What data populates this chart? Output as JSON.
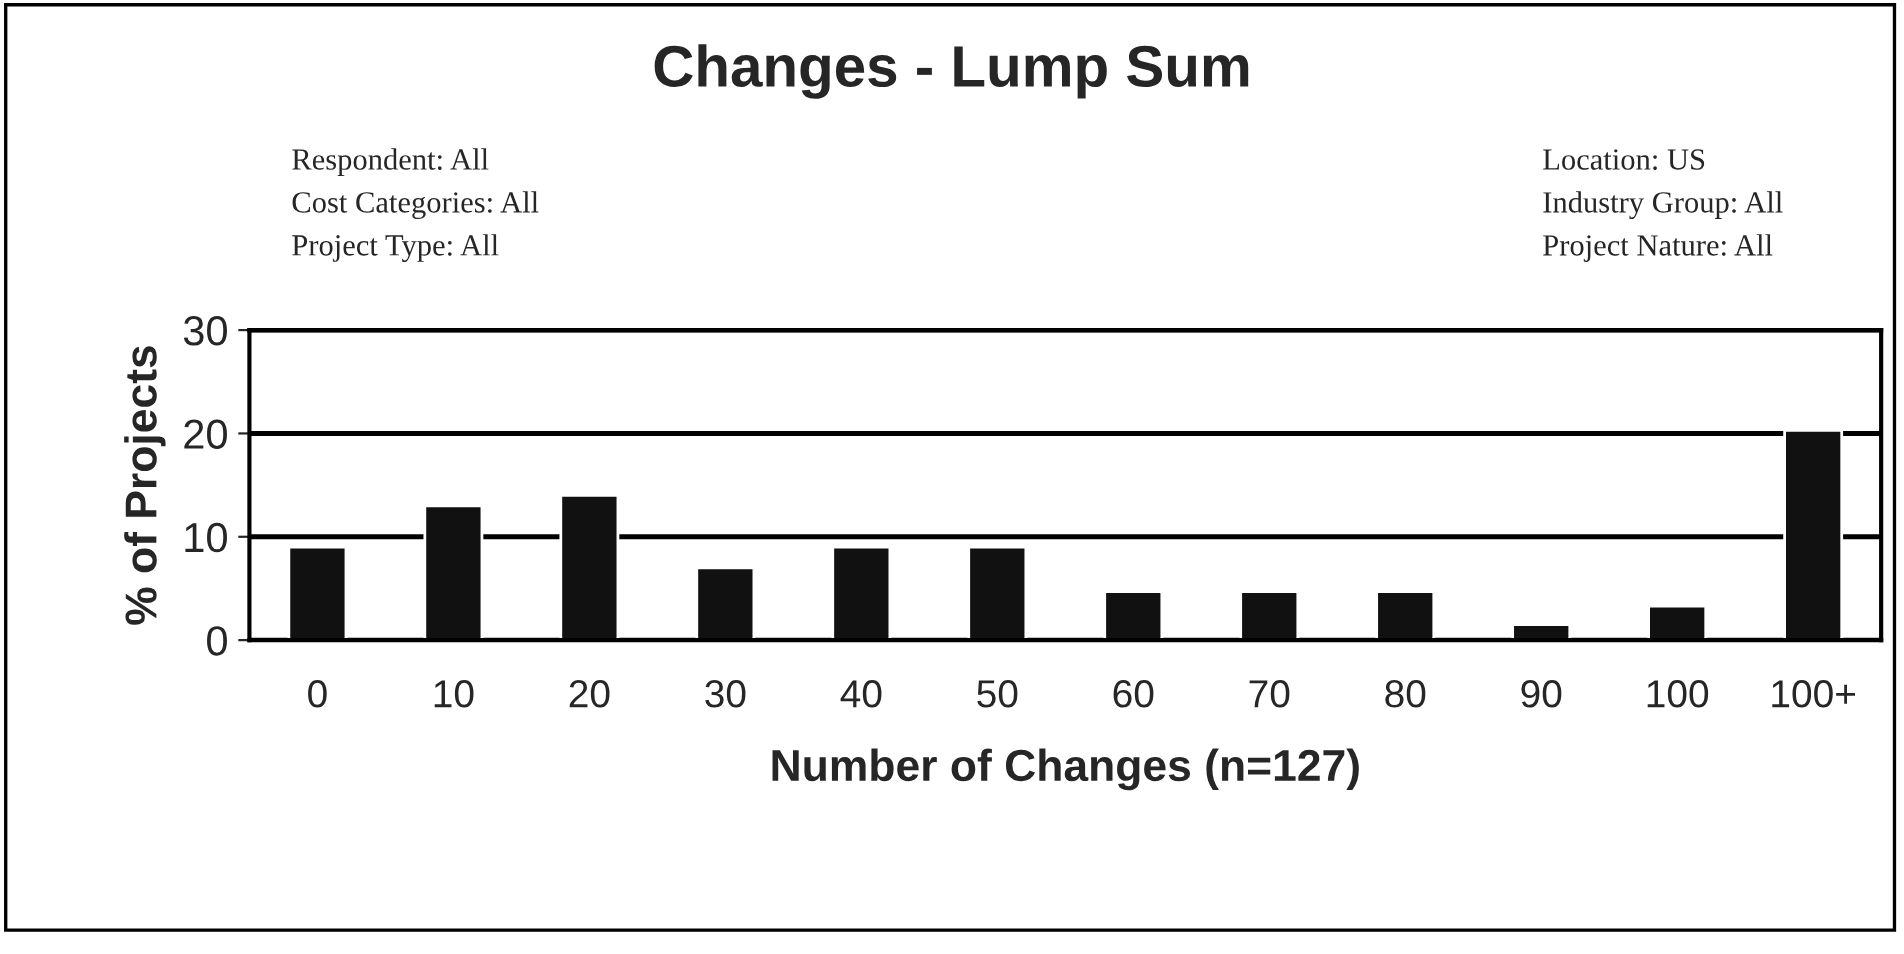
{
  "chart_data": {
    "type": "bar",
    "title": "Changes - Lump Sum",
    "xlabel": "Number of Changes (n=127)",
    "ylabel": "% of Projects",
    "categories": [
      "0",
      "10",
      "20",
      "30",
      "40",
      "50",
      "60",
      "70",
      "80",
      "90",
      "100",
      "100+"
    ],
    "values": [
      9,
      13,
      14,
      7,
      9,
      9,
      4.7,
      4.7,
      4.7,
      1.5,
      3.3,
      20.3
    ],
    "color": "#111111",
    "ylim": [
      0,
      30
    ],
    "yticks": [
      0,
      10,
      20,
      30
    ],
    "grid": "y",
    "annotations": [
      "Respondent: All",
      "Cost Categories: All",
      "Project Type: All",
      "Location: US",
      "Industry Group: All",
      "Project Nature: All"
    ]
  }
}
